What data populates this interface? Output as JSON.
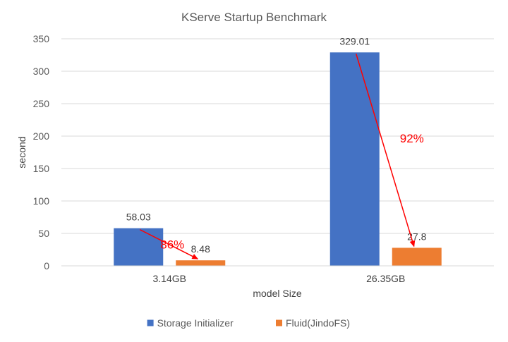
{
  "chart_data": {
    "type": "bar",
    "title": "KServe Startup Benchmark",
    "xlabel": "model Size",
    "ylabel": "second",
    "categories": [
      "3.14GB",
      "26.35GB"
    ],
    "series": [
      {
        "name": "Storage Initializer",
        "values": [
          58.03,
          329.01
        ],
        "color": "#4472C4"
      },
      {
        "name": "Fluid(JindoFS)",
        "values": [
          8.48,
          27.8
        ],
        "color": "#ED7D31"
      }
    ],
    "data_labels": [
      [
        "58.03",
        "329.01"
      ],
      [
        "8.48",
        "27.8"
      ]
    ],
    "ylim": [
      0,
      350
    ],
    "yticks": [
      0,
      50,
      100,
      150,
      200,
      250,
      300,
      350
    ],
    "grid": true,
    "legend_position": "bottom",
    "annotations": [
      {
        "text": "86%",
        "category_index": 0,
        "color": "#FF0000"
      },
      {
        "text": "92%",
        "category_index": 1,
        "color": "#FF0000"
      }
    ]
  }
}
